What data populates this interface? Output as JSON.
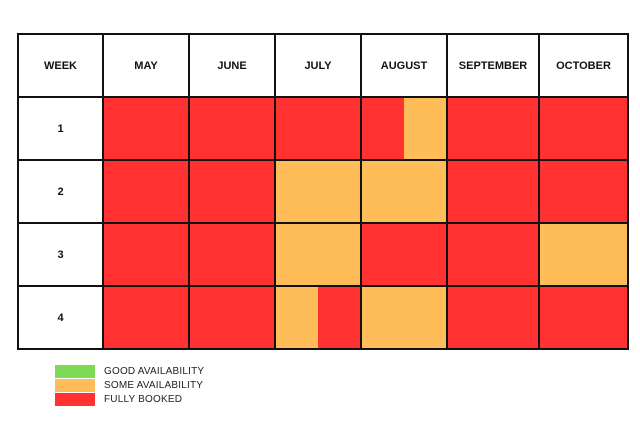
{
  "chart_data": {
    "type": "heatmap",
    "corner_label": "WEEK",
    "columns": [
      "MAY",
      "JUNE",
      "JULY",
      "AUGUST",
      "SEPTEMBER",
      "OCTOBER"
    ],
    "rows": [
      "1",
      "2",
      "3",
      "4"
    ],
    "cells": [
      [
        [
          "full"
        ],
        [
          "full"
        ],
        [
          "full"
        ],
        [
          "full",
          "some"
        ],
        [
          "full"
        ],
        [
          "full"
        ]
      ],
      [
        [
          "full"
        ],
        [
          "full"
        ],
        [
          "some"
        ],
        [
          "some"
        ],
        [
          "full"
        ],
        [
          "full"
        ]
      ],
      [
        [
          "full"
        ],
        [
          "full"
        ],
        [
          "some"
        ],
        [
          "full"
        ],
        [
          "full"
        ],
        [
          "some"
        ]
      ],
      [
        [
          "full"
        ],
        [
          "full"
        ],
        [
          "some",
          "full"
        ],
        [
          "some"
        ],
        [
          "full"
        ],
        [
          "full"
        ]
      ]
    ],
    "legend": [
      {
        "key": "good",
        "label": "GOOD AVAILABILITY",
        "color": "#7ed957"
      },
      {
        "key": "some",
        "label": "SOME AVAILABILITY",
        "color": "#ffbd59"
      },
      {
        "key": "full",
        "label": "FULLY BOOKED",
        "color": "#ff3131"
      }
    ]
  }
}
